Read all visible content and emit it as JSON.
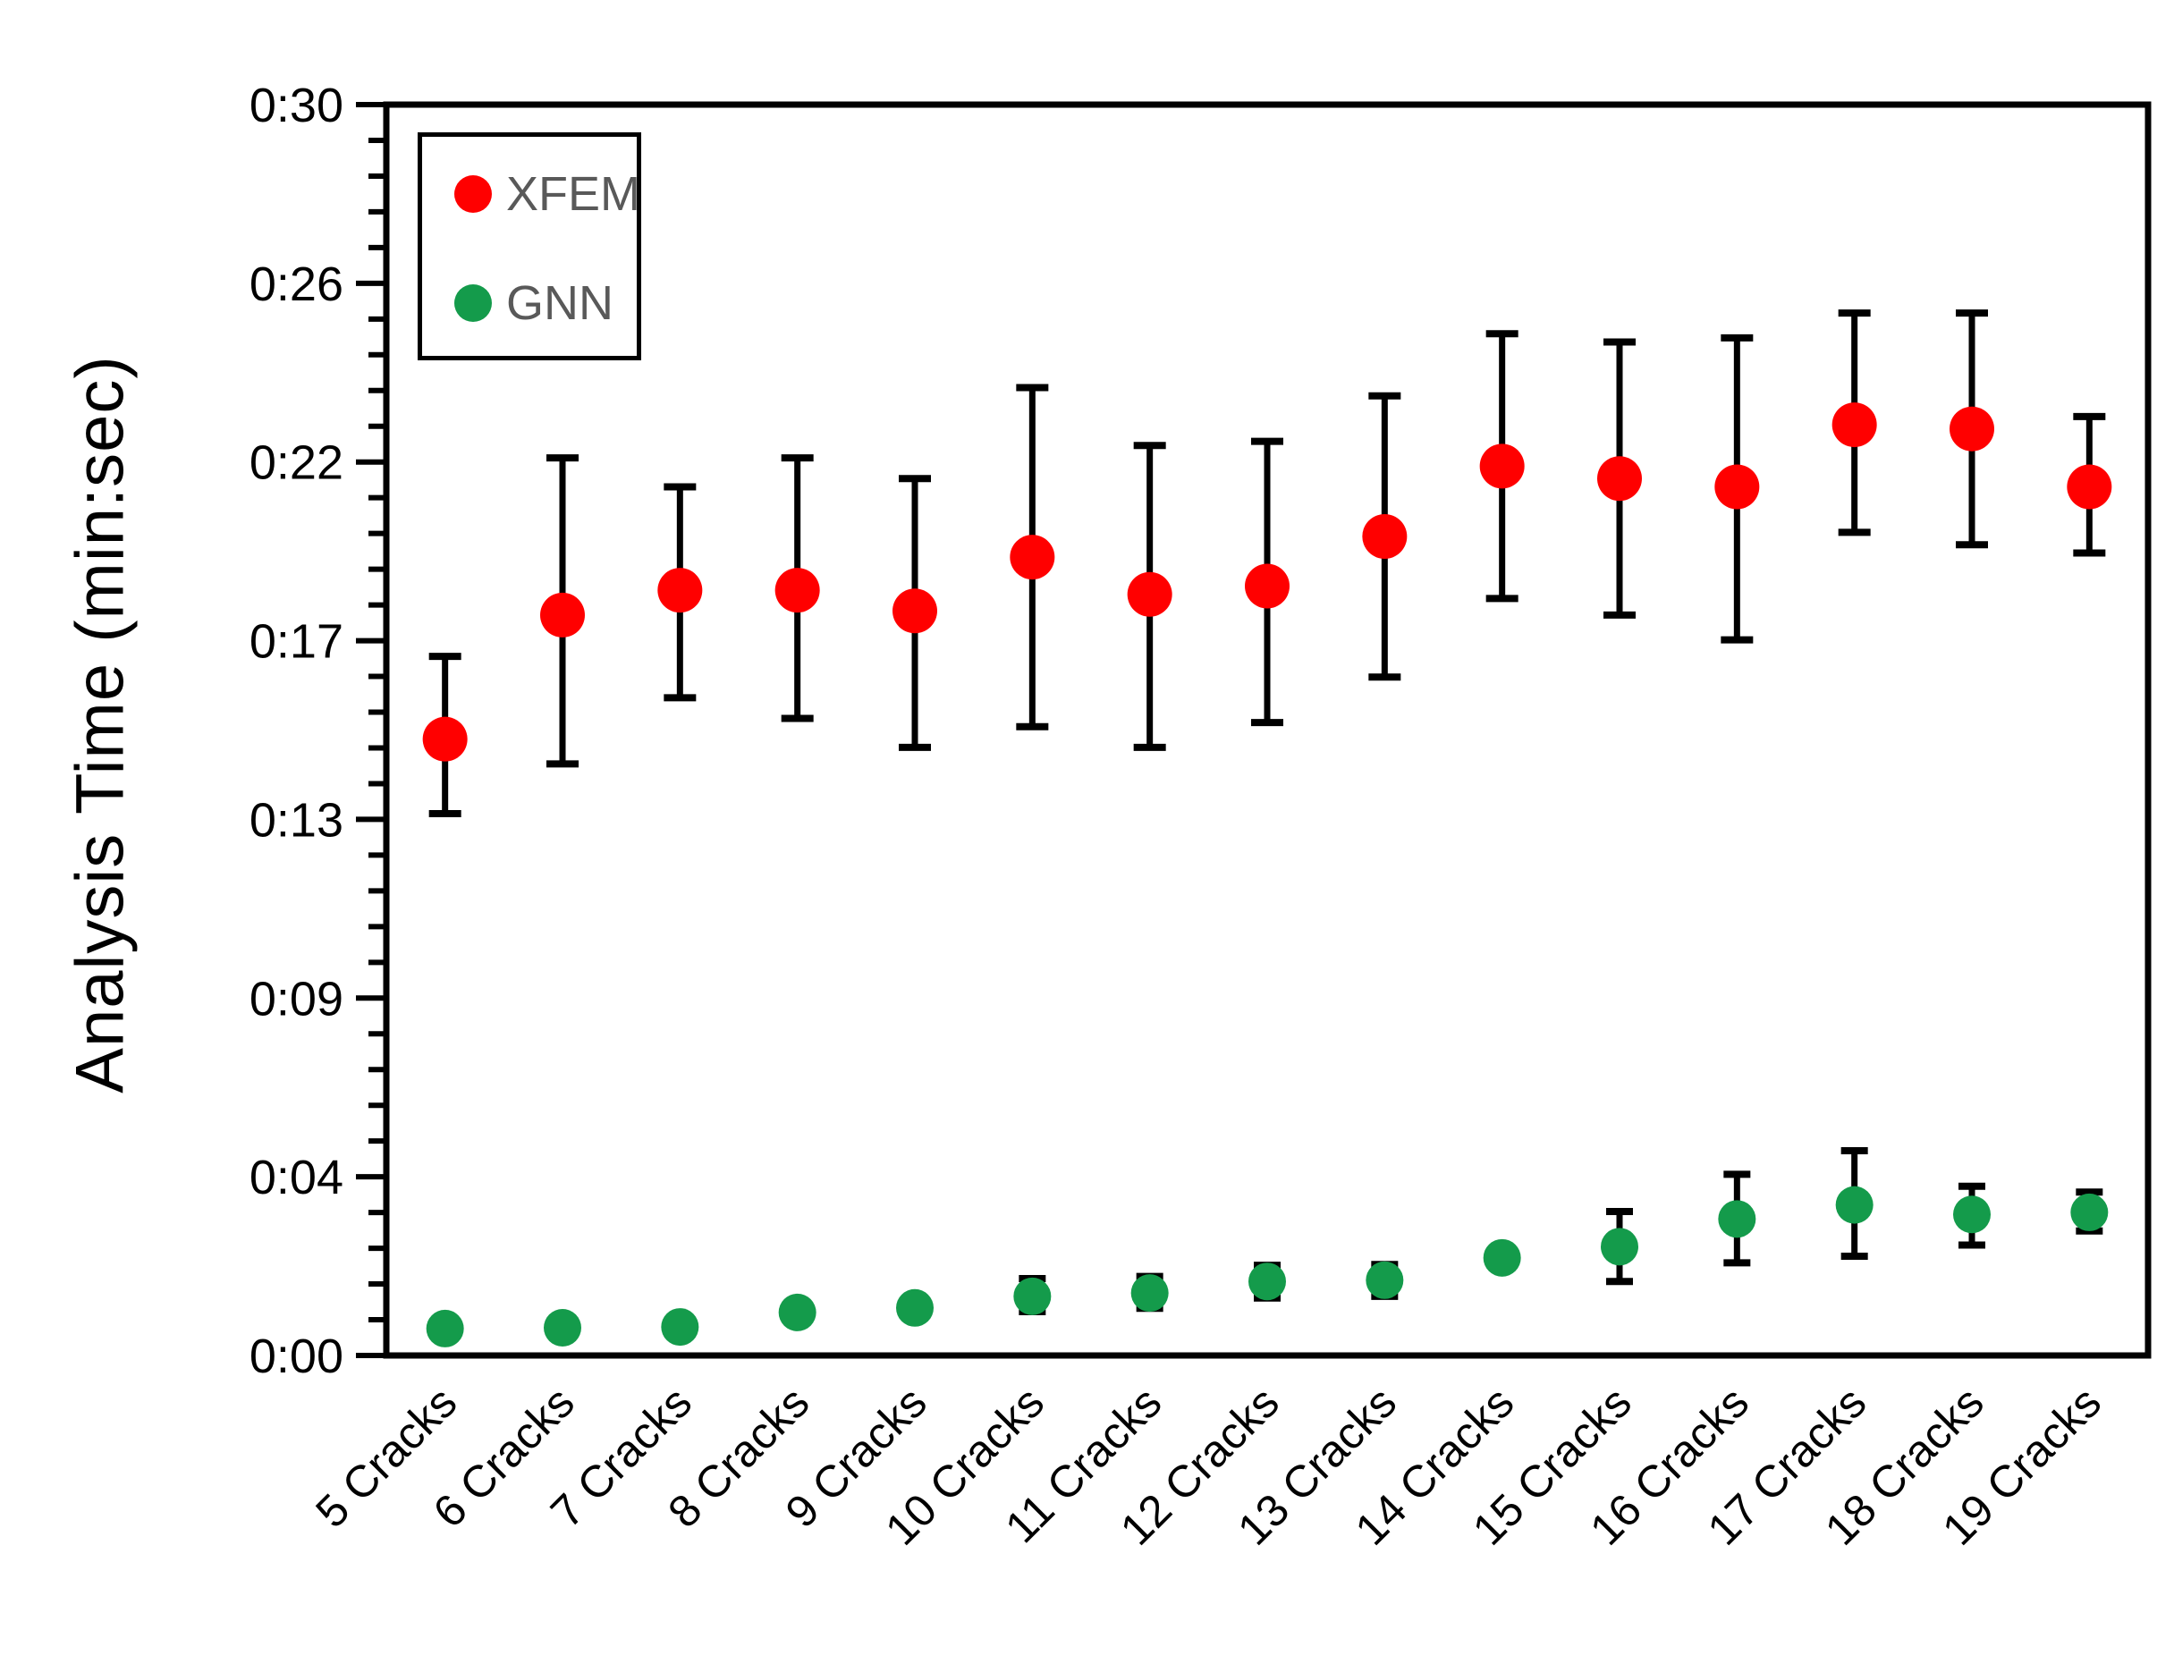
{
  "page": {
    "background": "#ffffff"
  },
  "y_axis": {
    "title": "Analysis Time (min:sec)",
    "tick_labels_bottom_to_top": [
      "0:00",
      "0:04",
      "0:09",
      "0:13",
      "0:17",
      "0:22",
      "0:26",
      "0:30"
    ],
    "max_seconds": 30.24,
    "major_divisions": 7,
    "minor_per_major": 5
  },
  "legend": {
    "text_color": "#595959",
    "items": [
      {
        "label": "XFEM",
        "color": "#ff0000"
      },
      {
        "label": "GNN",
        "color": "#149b4b"
      }
    ]
  },
  "chart_data": {
    "type": "scatter",
    "title": "",
    "xlabel": "",
    "ylabel": "Analysis Time (min:sec)",
    "y_unit": "seconds",
    "ylim": [
      0,
      30.24
    ],
    "grid": false,
    "legend_position": "top-left-inside",
    "y_tick_seconds": [
      0,
      4.32,
      8.64,
      12.96,
      17.28,
      21.6,
      25.92,
      30.24
    ],
    "y_tick_labels": [
      "0:00",
      "0:04",
      "0:09",
      "0:13",
      "0:17",
      "0:22",
      "0:26",
      "0:30"
    ],
    "categories": [
      "5 Cracks",
      "6 Cracks",
      "7 Cracks",
      "8 Cracks",
      "9 Cracks",
      "10 Cracks",
      "11 Cracks",
      "12 Cracks",
      "13 Cracks",
      "14 Cracks",
      "15 Cracks",
      "16 Cracks",
      "17 Cracks",
      "18 Cracks",
      "19 Cracks"
    ],
    "series": [
      {
        "name": "XFEM",
        "color": "#ff0000",
        "marker_radius": 25,
        "values": [
          14.9,
          17.9,
          18.5,
          18.5,
          18.0,
          19.3,
          18.4,
          18.6,
          19.8,
          21.5,
          21.2,
          21.0,
          22.5,
          22.4,
          21.0
        ],
        "err_low": [
          13.1,
          14.3,
          15.9,
          15.4,
          14.7,
          15.2,
          14.7,
          15.3,
          16.4,
          18.3,
          17.9,
          17.3,
          19.9,
          19.6,
          19.4
        ],
        "err_high": [
          16.9,
          21.7,
          21.0,
          21.7,
          21.2,
          23.4,
          22.0,
          22.1,
          23.2,
          24.7,
          24.5,
          24.6,
          25.2,
          25.2,
          22.7
        ]
      },
      {
        "name": "GNN",
        "color": "#149b4b",
        "marker_radius": 21,
        "values": [
          0.65,
          0.67,
          0.69,
          1.04,
          1.15,
          1.43,
          1.51,
          1.79,
          1.82,
          2.36,
          2.63,
          3.3,
          3.64,
          3.41,
          3.46
        ],
        "err_low": [
          null,
          null,
          null,
          null,
          null,
          1.06,
          1.14,
          1.39,
          1.43,
          null,
          1.79,
          2.24,
          2.4,
          2.67,
          3.01
        ],
        "err_high": [
          null,
          null,
          null,
          null,
          null,
          1.86,
          1.91,
          2.18,
          2.2,
          null,
          3.48,
          4.38,
          4.95,
          4.09,
          3.95
        ]
      }
    ]
  }
}
